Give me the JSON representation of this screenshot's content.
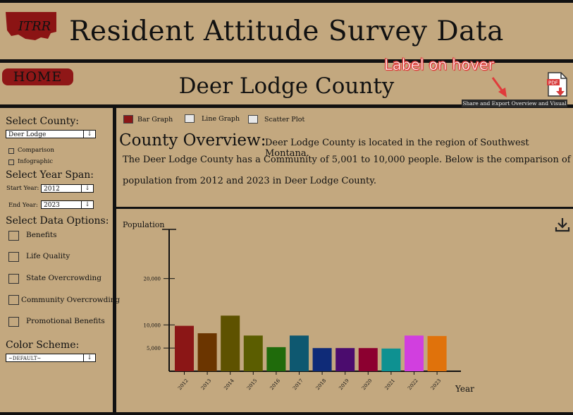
{
  "header": {
    "logo_text": "ITRR",
    "title": "Resident Attitude Survey Data"
  },
  "nav": {
    "home_label": "HOME",
    "county_title": "Deer Lodge County",
    "hover_annotation": "Label on hover",
    "pdf_icon_text": "PDF",
    "export_tooltip": "Share and Export Overview and Visual"
  },
  "sidebar": {
    "select_county_label": "Select County:",
    "county_value": "Deer Lodge",
    "comparison_label": "Comparison",
    "infographic_label": "Infographic",
    "year_span_label": "Select Year Span:",
    "start_year_label": "Start Year:",
    "start_year_value": "2012",
    "end_year_label": "End Year:",
    "end_year_value": "2023",
    "data_options_label": "Select Data Options:",
    "data_options": [
      "Benefits",
      "Life Quality",
      "State Overcrowding",
      "Community Overcrowding",
      "Promotional Benefits"
    ],
    "color_scheme_label": "Color Scheme:",
    "color_scheme_value": "~DEFAULT~"
  },
  "graph_types": {
    "bar": "Bar Graph",
    "line": "Line Graph",
    "scatter": "Scatter Plot",
    "selected": "bar"
  },
  "overview": {
    "heading": "County Overview:",
    "line1": "Deer Lodge County is located in the region of Southwest Montana.",
    "line2": "The Deer Lodge County has a Community of 5,001 to 10,000 people. Below is the comparison of",
    "line3": "population from 2012 and 2023 in Deer Lodge County."
  },
  "chart_data": {
    "type": "bar",
    "ylabel": "Population",
    "xlabel": "Year",
    "categories": [
      "2012",
      "2013",
      "2014",
      "2015",
      "2016",
      "2017",
      "2018",
      "2019",
      "2020",
      "2021",
      "2022",
      "2023"
    ],
    "values": [
      9800,
      8200,
      12000,
      7700,
      5200,
      7700,
      5000,
      5000,
      5000,
      4900,
      7700,
      7600
    ],
    "colors": [
      "#8b1616",
      "#6b3500",
      "#5e5200",
      "#5b5d00",
      "#1f6b0b",
      "#0e5870",
      "#0f2b78",
      "#4b0c6e",
      "#8c0030",
      "#0e9191",
      "#d13fdf",
      "#e0720b"
    ],
    "yticks": [
      5000,
      10000,
      20000
    ],
    "ytick_labels": [
      "5,000",
      "10,000",
      "20,000"
    ],
    "ylim": [
      0,
      30000
    ]
  },
  "icons": {
    "download": "download-icon",
    "pdf": "pdf-export-icon",
    "caret": "chevron-down-icon"
  }
}
